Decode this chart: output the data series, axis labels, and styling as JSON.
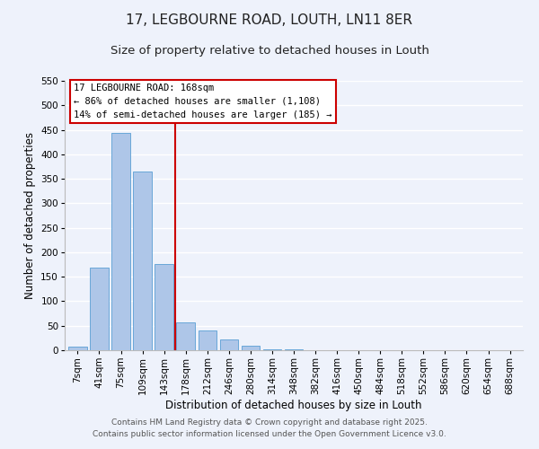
{
  "title": "17, LEGBOURNE ROAD, LOUTH, LN11 8ER",
  "subtitle": "Size of property relative to detached houses in Louth",
  "xlabel": "Distribution of detached houses by size in Louth",
  "ylabel": "Number of detached properties",
  "bar_labels": [
    "7sqm",
    "41sqm",
    "75sqm",
    "109sqm",
    "143sqm",
    "178sqm",
    "212sqm",
    "246sqm",
    "280sqm",
    "314sqm",
    "348sqm",
    "382sqm",
    "416sqm",
    "450sqm",
    "484sqm",
    "518sqm",
    "552sqm",
    "586sqm",
    "620sqm",
    "654sqm",
    "688sqm"
  ],
  "bar_values": [
    8,
    168,
    443,
    365,
    176,
    56,
    40,
    22,
    10,
    2,
    1,
    0,
    0,
    0,
    0,
    0,
    0,
    0,
    0,
    0,
    0
  ],
  "bar_color": "#aec6e8",
  "bar_edge_color": "#5a9fd4",
  "vline_color": "#cc0000",
  "vline_x": 4.5,
  "ylim": [
    0,
    550
  ],
  "yticks": [
    0,
    50,
    100,
    150,
    200,
    250,
    300,
    350,
    400,
    450,
    500,
    550
  ],
  "annotation_title": "17 LEGBOURNE ROAD: 168sqm",
  "annotation_line1": "← 86% of detached houses are smaller (1,108)",
  "annotation_line2": "14% of semi-detached houses are larger (185) →",
  "footer1": "Contains HM Land Registry data © Crown copyright and database right 2025.",
  "footer2": "Contains public sector information licensed under the Open Government Licence v3.0.",
  "background_color": "#eef2fb",
  "grid_color": "#ffffff",
  "title_fontsize": 11,
  "subtitle_fontsize": 9.5,
  "axis_label_fontsize": 8.5,
  "tick_fontsize": 7.5,
  "annotation_fontsize": 7.5,
  "footer_fontsize": 6.5
}
